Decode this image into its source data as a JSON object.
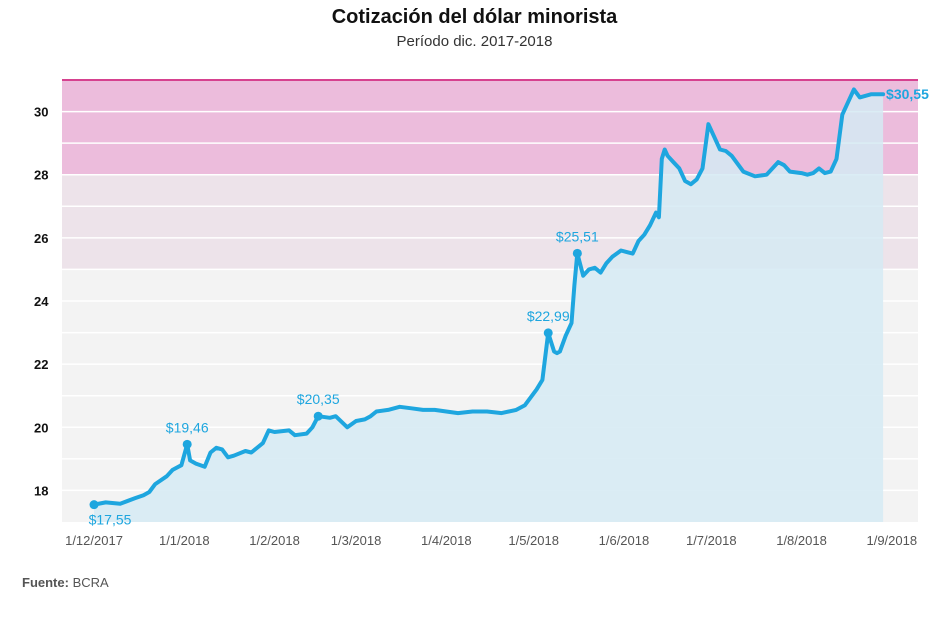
{
  "title": "Cotización del dólar minorista",
  "subtitle": "Período dic. 2017-2018",
  "source": {
    "label": "Fuente:",
    "value": "BCRA"
  },
  "colors": {
    "line": "#1ea6df",
    "area": "#d5eaf3",
    "band_high": "#ecbcdc",
    "band_mid": "#ede3ea",
    "plot_bg": "#f3f3f3",
    "band_top_line": "#d6418f",
    "label": "#1ea6df"
  },
  "chart_data": {
    "type": "area",
    "title": "Cotización del dólar minorista",
    "subtitle": "Período dic. 2017-2018",
    "xlabel": "",
    "ylabel": "",
    "ylim": [
      17,
      31
    ],
    "xlim": [
      "2017-11-20",
      "2018-09-10"
    ],
    "yticks": [
      18,
      20,
      22,
      24,
      26,
      28,
      30
    ],
    "xticks": [
      {
        "date": "2017-12-01",
        "label": "1/12/2017"
      },
      {
        "date": "2018-01-01",
        "label": "1/1/2018"
      },
      {
        "date": "2018-02-01",
        "label": "1/2/2018"
      },
      {
        "date": "2018-03-01",
        "label": "1/3/2018"
      },
      {
        "date": "2018-04-01",
        "label": "1/4/2018"
      },
      {
        "date": "2018-05-01",
        "label": "1/5/2018"
      },
      {
        "date": "2018-06-01",
        "label": "1/6/2018"
      },
      {
        "date": "2018-07-01",
        "label": "1/7/2018"
      },
      {
        "date": "2018-08-01",
        "label": "1/8/2018"
      },
      {
        "date": "2018-09-01",
        "label": "1/9/2018"
      }
    ],
    "grid": true,
    "bands": [
      {
        "from": 28,
        "to": 31,
        "color": "#ecbcdc"
      },
      {
        "from": 25,
        "to": 28,
        "color": "#ede3ea"
      }
    ],
    "series": [
      {
        "x": [
          "2017-12-01",
          "2017-12-05",
          "2017-12-10",
          "2017-12-15",
          "2017-12-18",
          "2017-12-20",
          "2017-12-22",
          "2017-12-26",
          "2017-12-28",
          "2017-12-31",
          "2018-01-02",
          "2018-01-03",
          "2018-01-05",
          "2018-01-08",
          "2018-01-10",
          "2018-01-12",
          "2018-01-14",
          "2018-01-16",
          "2018-01-18",
          "2018-01-22",
          "2018-01-24",
          "2018-01-28",
          "2018-01-30",
          "2018-02-01",
          "2018-02-06",
          "2018-02-08",
          "2018-02-12",
          "2018-02-14",
          "2018-02-16",
          "2018-02-20",
          "2018-02-22",
          "2018-02-26",
          "2018-03-01",
          "2018-03-04",
          "2018-03-06",
          "2018-03-08",
          "2018-03-12",
          "2018-03-16",
          "2018-03-20",
          "2018-03-24",
          "2018-03-28",
          "2018-04-01",
          "2018-04-05",
          "2018-04-10",
          "2018-04-15",
          "2018-04-20",
          "2018-04-25",
          "2018-04-28",
          "2018-05-02",
          "2018-05-04",
          "2018-05-06",
          "2018-05-08",
          "2018-05-09",
          "2018-05-10",
          "2018-05-12",
          "2018-05-14",
          "2018-05-15",
          "2018-05-16",
          "2018-05-18",
          "2018-05-20",
          "2018-05-22",
          "2018-05-24",
          "2018-05-26",
          "2018-05-28",
          "2018-05-31",
          "2018-06-02",
          "2018-06-04",
          "2018-06-06",
          "2018-06-08",
          "2018-06-10",
          "2018-06-12",
          "2018-06-13",
          "2018-06-14",
          "2018-06-15",
          "2018-06-16",
          "2018-06-18",
          "2018-06-20",
          "2018-06-22",
          "2018-06-24",
          "2018-06-26",
          "2018-06-28",
          "2018-06-30",
          "2018-07-02",
          "2018-07-04",
          "2018-07-06",
          "2018-07-08",
          "2018-07-10",
          "2018-07-12",
          "2018-07-16",
          "2018-07-20",
          "2018-07-24",
          "2018-07-26",
          "2018-07-28",
          "2018-08-01",
          "2018-08-03",
          "2018-08-05",
          "2018-08-07",
          "2018-08-09",
          "2018-08-11",
          "2018-08-13",
          "2018-08-15",
          "2018-08-17",
          "2018-08-19",
          "2018-08-21",
          "2018-08-23",
          "2018-08-25",
          "2018-08-27",
          "2018-08-29"
        ],
        "y": [
          17.55,
          17.62,
          17.58,
          17.75,
          17.85,
          17.95,
          18.2,
          18.45,
          18.65,
          18.8,
          19.46,
          18.95,
          18.85,
          18.75,
          19.2,
          19.35,
          19.3,
          19.05,
          19.1,
          19.25,
          19.2,
          19.5,
          19.9,
          19.85,
          19.9,
          19.75,
          19.8,
          20.0,
          20.35,
          20.3,
          20.35,
          20.0,
          20.2,
          20.25,
          20.35,
          20.5,
          20.55,
          20.65,
          20.6,
          20.55,
          20.55,
          20.5,
          20.45,
          20.5,
          20.5,
          20.45,
          20.55,
          20.7,
          21.2,
          21.5,
          22.99,
          22.4,
          22.35,
          22.4,
          22.9,
          23.3,
          24.5,
          25.51,
          24.8,
          25.0,
          25.05,
          24.9,
          25.2,
          25.4,
          25.6,
          25.55,
          25.5,
          25.9,
          26.1,
          26.4,
          26.8,
          26.65,
          28.5,
          28.8,
          28.6,
          28.4,
          28.2,
          27.8,
          27.7,
          27.85,
          28.2,
          29.6,
          29.2,
          28.8,
          28.75,
          28.6,
          28.35,
          28.1,
          27.95,
          28.0,
          28.4,
          28.3,
          28.1,
          28.05,
          28.0,
          28.05,
          28.2,
          28.05,
          28.1,
          28.5,
          29.9,
          30.3,
          30.7,
          30.45,
          30.5,
          30.55,
          30.55,
          30.55
        ]
      }
    ],
    "annotations": [
      {
        "x": "2017-12-01",
        "y": 17.55,
        "label": "$17,55",
        "pos": "below"
      },
      {
        "x": "2018-01-02",
        "y": 19.46,
        "label": "$19,46",
        "pos": "above"
      },
      {
        "x": "2018-02-16",
        "y": 20.35,
        "label": "$20,35",
        "pos": "above"
      },
      {
        "x": "2018-05-06",
        "y": 22.99,
        "label": "$22,99",
        "pos": "above"
      },
      {
        "x": "2018-05-16",
        "y": 25.51,
        "label": "$25,51",
        "pos": "above"
      },
      {
        "x": "2018-08-29",
        "y": 30.55,
        "label": "$30,55",
        "pos": "right",
        "bold": true
      }
    ]
  }
}
